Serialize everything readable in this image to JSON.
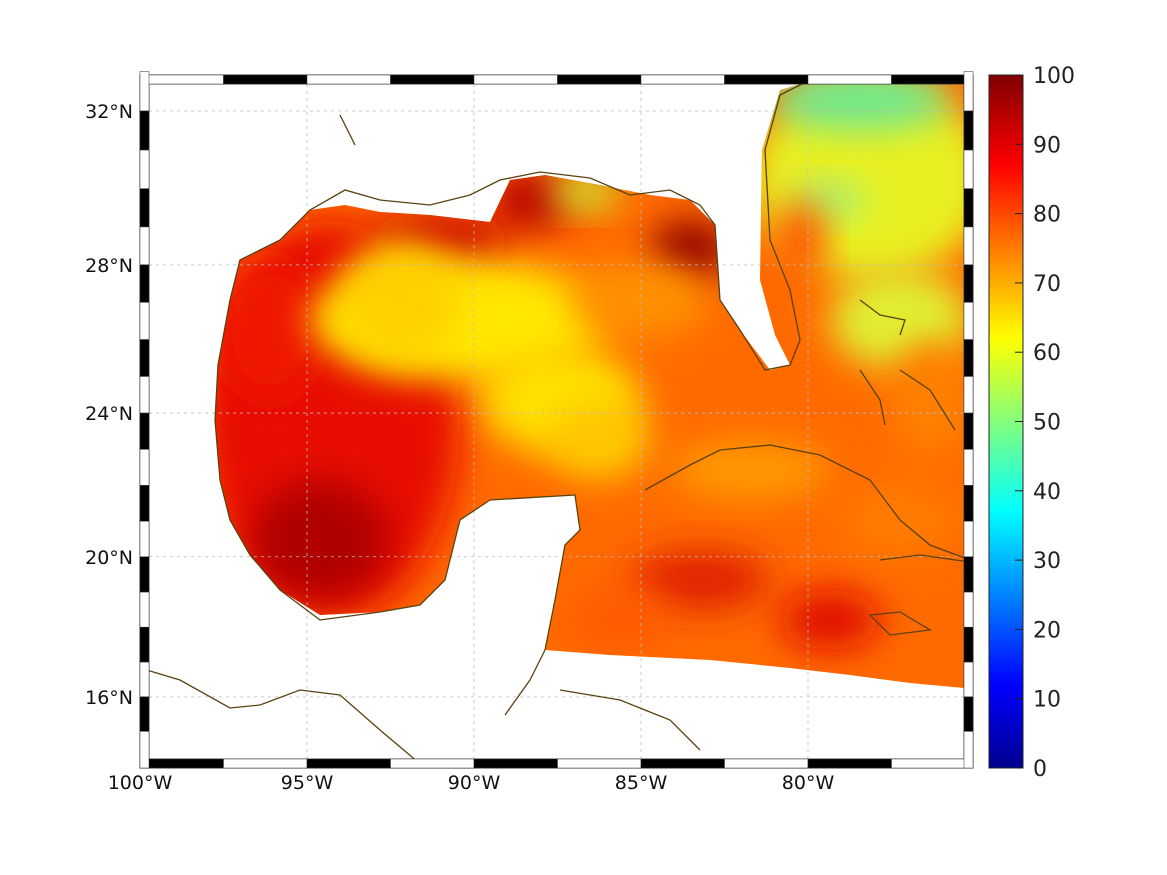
{
  "chart_data": {
    "type": "heatmap",
    "title": "",
    "xlabel": "",
    "ylabel": "",
    "projection": "mercator",
    "lon_range": [
      -100,
      -75
    ],
    "lat_range": [
      14.2,
      33
    ],
    "lon_ticks": [
      "100°W",
      "95°W",
      "90°W",
      "85°W",
      "80°W"
    ],
    "lat_ticks": [
      "32°N",
      "28°N",
      "24°N",
      "20°N",
      "16°N"
    ],
    "colorbar": {
      "min": 0,
      "max": 100,
      "colormap": "jet",
      "ticks": [
        "0",
        "10",
        "20",
        "30",
        "40",
        "50",
        "60",
        "70",
        "80",
        "90",
        "100"
      ]
    },
    "grid": true,
    "coastline_color": "#5a4210",
    "regions": [
      {
        "name": "western Gulf of Mexico",
        "approx_value": 88
      },
      {
        "name": "central Gulf of Mexico",
        "approx_value": 68
      },
      {
        "name": "northeast Gulf near Florida",
        "approx_value": 95
      },
      {
        "name": "Caribbean",
        "approx_value": 80
      },
      {
        "name": "Atlantic off Florida",
        "approx_value": 62
      },
      {
        "name": "Atlantic near 32N 78W",
        "approx_value": 52
      }
    ]
  }
}
